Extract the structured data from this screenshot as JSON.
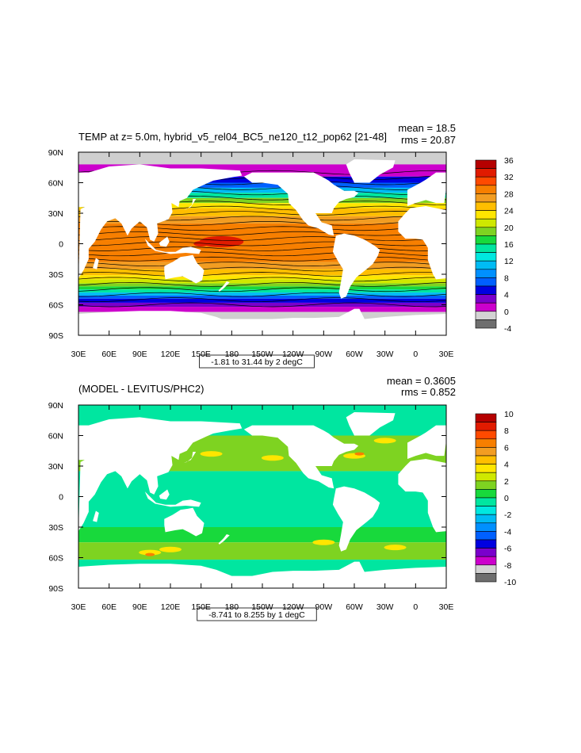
{
  "chart_data": [
    {
      "type": "heatmap",
      "title": "TEMP at z=   5.0m, hybrid_v5_rel04_BC5_ne120_t12_pop62 [21-48]",
      "mean_label": "mean = 18.5",
      "rms_label": "rms = 20.87",
      "range_label": "-1.81 to 31.44 by 2 degC",
      "x_ticks": [
        "30E",
        "60E",
        "90E",
        "120E",
        "150E",
        "180",
        "150W",
        "120W",
        "90W",
        "60W",
        "30W",
        "0",
        "30E"
      ],
      "y_ticks": [
        "90N",
        "60N",
        "30N",
        "0",
        "30S",
        "60S",
        "90S"
      ],
      "xlim": [
        30,
        390
      ],
      "ylim": [
        -90,
        90
      ],
      "colorbar": {
        "labels": [
          "36",
          "32",
          "28",
          "24",
          "20",
          "16",
          "12",
          "8",
          "4",
          "0",
          "-4"
        ],
        "colors": [
          "#b50000",
          "#e11b00",
          "#ff4a00",
          "#f77f00",
          "#f29d22",
          "#ffbe00",
          "#ffe600",
          "#cfe800",
          "#7ed321",
          "#18d93c",
          "#00e6a0",
          "#00e8e0",
          "#00bbf4",
          "#0090ff",
          "#0060ff",
          "#0000e0",
          "#7a00cc",
          "#cc00cc",
          "#d3d3d3",
          "#6e6e6e"
        ]
      }
    },
    {
      "type": "heatmap",
      "title": "(MODEL - LEVITUS/PHC2)",
      "mean_label": "mean = 0.3605",
      "rms_label": "rms = 0.852",
      "range_label": "-8.741 to 8.255 by 1 degC",
      "x_ticks": [
        "30E",
        "60E",
        "90E",
        "120E",
        "150E",
        "180",
        "150W",
        "120W",
        "90W",
        "60W",
        "30W",
        "0",
        "30E"
      ],
      "y_ticks": [
        "90N",
        "60N",
        "30N",
        "0",
        "30S",
        "60S",
        "90S"
      ],
      "xlim": [
        30,
        390
      ],
      "ylim": [
        -90,
        90
      ],
      "colorbar": {
        "labels": [
          "10",
          "8",
          "6",
          "4",
          "2",
          "0",
          "-2",
          "-4",
          "-6",
          "-8",
          "-10"
        ],
        "colors": [
          "#b50000",
          "#e11b00",
          "#ff4a00",
          "#f77f00",
          "#f29d22",
          "#ffbe00",
          "#ffe600",
          "#cfe800",
          "#7ed321",
          "#18d93c",
          "#00e6a0",
          "#00e8e0",
          "#00bbf4",
          "#0090ff",
          "#0060ff",
          "#0000e0",
          "#7a00cc",
          "#cc00cc",
          "#d3d3d3",
          "#6e6e6e"
        ]
      }
    }
  ]
}
